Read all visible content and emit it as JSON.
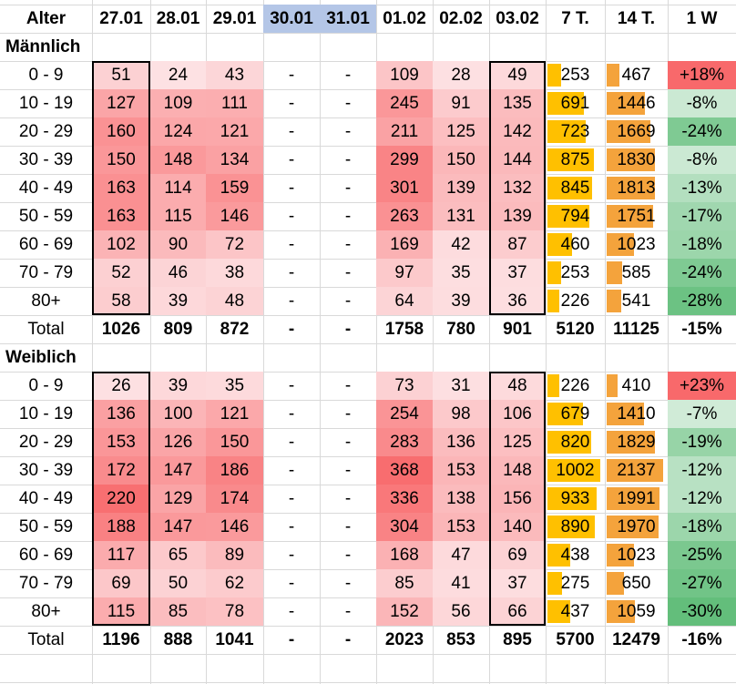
{
  "header": [
    "Alter",
    "27.01",
    "28.01",
    "29.01",
    "30.01",
    "31.01",
    "01.02",
    "02.02",
    "03.02",
    "7 T.",
    "14 T.",
    "1 W"
  ],
  "highlighted_header_dates": [
    "30.01",
    "31.01"
  ],
  "sections": [
    {
      "title": "Männlich",
      "rows": [
        {
          "age": "0 - 9",
          "days": [
            "51",
            "24",
            "43",
            "-",
            "-",
            "109",
            "28",
            "49"
          ],
          "t7": "253",
          "t14": "467",
          "w1": "+18%"
        },
        {
          "age": "10 - 19",
          "days": [
            "127",
            "109",
            "111",
            "-",
            "-",
            "245",
            "91",
            "135"
          ],
          "t7": "691",
          "t14": "1446",
          "w1": "-8%"
        },
        {
          "age": "20 - 29",
          "days": [
            "160",
            "124",
            "121",
            "-",
            "-",
            "211",
            "125",
            "142"
          ],
          "t7": "723",
          "t14": "1669",
          "w1": "-24%"
        },
        {
          "age": "30 - 39",
          "days": [
            "150",
            "148",
            "134",
            "-",
            "-",
            "299",
            "150",
            "144"
          ],
          "t7": "875",
          "t14": "1830",
          "w1": "-8%"
        },
        {
          "age": "40 - 49",
          "days": [
            "163",
            "114",
            "159",
            "-",
            "-",
            "301",
            "139",
            "132"
          ],
          "t7": "845",
          "t14": "1813",
          "w1": "-13%"
        },
        {
          "age": "50 - 59",
          "days": [
            "163",
            "115",
            "146",
            "-",
            "-",
            "263",
            "131",
            "139"
          ],
          "t7": "794",
          "t14": "1751",
          "w1": "-17%"
        },
        {
          "age": "60 - 69",
          "days": [
            "102",
            "90",
            "72",
            "-",
            "-",
            "169",
            "42",
            "87"
          ],
          "t7": "460",
          "t14": "1023",
          "w1": "-18%"
        },
        {
          "age": "70 - 79",
          "days": [
            "52",
            "46",
            "38",
            "-",
            "-",
            "97",
            "35",
            "37"
          ],
          "t7": "253",
          "t14": "585",
          "w1": "-24%"
        },
        {
          "age": "80+",
          "days": [
            "58",
            "39",
            "48",
            "-",
            "-",
            "64",
            "39",
            "36"
          ],
          "t7": "226",
          "t14": "541",
          "w1": "-28%"
        }
      ],
      "total": {
        "label": "Total",
        "days": [
          "1026",
          "809",
          "872",
          "-",
          "-",
          "1758",
          "780",
          "901"
        ],
        "t7": "5120",
        "t14": "11125",
        "w1": "-15%"
      }
    },
    {
      "title": "Weiblich",
      "rows": [
        {
          "age": "0 - 9",
          "days": [
            "26",
            "39",
            "35",
            "-",
            "-",
            "73",
            "31",
            "48"
          ],
          "t7": "226",
          "t14": "410",
          "w1": "+23%"
        },
        {
          "age": "10 - 19",
          "days": [
            "136",
            "100",
            "121",
            "-",
            "-",
            "254",
            "98",
            "106"
          ],
          "t7": "679",
          "t14": "1410",
          "w1": "-7%"
        },
        {
          "age": "20 - 29",
          "days": [
            "153",
            "126",
            "150",
            "-",
            "-",
            "283",
            "136",
            "125"
          ],
          "t7": "820",
          "t14": "1829",
          "w1": "-19%"
        },
        {
          "age": "30 - 39",
          "days": [
            "172",
            "147",
            "186",
            "-",
            "-",
            "368",
            "153",
            "148"
          ],
          "t7": "1002",
          "t14": "2137",
          "w1": "-12%"
        },
        {
          "age": "40 - 49",
          "days": [
            "220",
            "129",
            "174",
            "-",
            "-",
            "336",
            "138",
            "156"
          ],
          "t7": "933",
          "t14": "1991",
          "w1": "-12%"
        },
        {
          "age": "50 - 59",
          "days": [
            "188",
            "147",
            "146",
            "-",
            "-",
            "304",
            "153",
            "140"
          ],
          "t7": "890",
          "t14": "1970",
          "w1": "-18%"
        },
        {
          "age": "60 - 69",
          "days": [
            "117",
            "65",
            "89",
            "-",
            "-",
            "168",
            "47",
            "69"
          ],
          "t7": "438",
          "t14": "1023",
          "w1": "-25%"
        },
        {
          "age": "70 - 79",
          "days": [
            "69",
            "50",
            "62",
            "-",
            "-",
            "85",
            "41",
            "37"
          ],
          "t7": "275",
          "t14": "650",
          "w1": "-27%"
        },
        {
          "age": "80+",
          "days": [
            "115",
            "85",
            "78",
            "-",
            "-",
            "152",
            "56",
            "66"
          ],
          "t7": "437",
          "t14": "1059",
          "w1": "-30%"
        }
      ],
      "total": {
        "label": "Total",
        "days": [
          "1196",
          "888",
          "1041",
          "-",
          "-",
          "2023",
          "853",
          "895"
        ],
        "t7": "5700",
        "t14": "12479",
        "w1": "-16%"
      }
    }
  ],
  "colors": {
    "heat_low": "#fde3e5",
    "heat_high": "#f8696b",
    "bar_7t": "#ffc000",
    "bar_14t": "#f4a33c",
    "pct_positive": "#f8696b",
    "pct_negative_strong": "#63be7b",
    "pct_negative_light": "#d9efdf",
    "header_blue": "#b4c6e7",
    "box_border": "#000000"
  }
}
